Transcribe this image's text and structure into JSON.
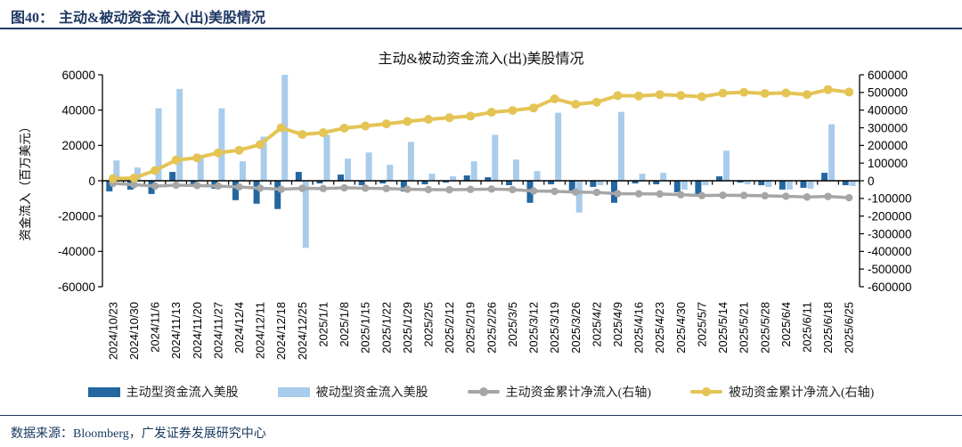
{
  "figure_header": {
    "label": "图40：",
    "title": "主动&被动资金流入(出)美股情况"
  },
  "source_note": "数据来源：Bloomberg，广发证券发展研究中心",
  "colors": {
    "active_bar": "#2367A0",
    "passive_bar": "#A9CCEB",
    "active_cum_line": "#A6A6A6",
    "passive_cum_line": "#E4C454",
    "header_text": "#1F3864",
    "axis": "#000000"
  },
  "chart_data": {
    "type": "bar",
    "subtype": "combo bar + line, dual axis",
    "title": "主动&被动资金流入(出)美股情况",
    "ylabel": "资金流入（百万美元）",
    "xlabel": "",
    "grid": false,
    "legend_position": "bottom",
    "left_axis": {
      "min": -60000,
      "max": 60000,
      "step": 20000,
      "ticks": [
        "60000",
        "40000",
        "20000",
        "0",
        "-20000",
        "-40000",
        "-60000"
      ]
    },
    "right_axis": {
      "min": -600000,
      "max": 600000,
      "step": 100000,
      "ticks": [
        "600000",
        "500000",
        "400000",
        "300000",
        "200000",
        "100000",
        "0",
        "-100000",
        "-200000",
        "-300000",
        "-400000",
        "-500000",
        "-600000"
      ]
    },
    "categories": [
      "2024/10/23",
      "2024/10/30",
      "2024/11/6",
      "2024/11/13",
      "2024/11/20",
      "2024/11/27",
      "2024/12/4",
      "2024/12/11",
      "2024/12/18",
      "2024/12/25",
      "2025/1/1",
      "2025/1/8",
      "2025/1/15",
      "2025/1/22",
      "2025/1/29",
      "2025/2/5",
      "2025/2/12",
      "2025/2/19",
      "2025/2/26",
      "2025/3/5",
      "2025/3/12",
      "2025/3/19",
      "2025/3/26",
      "2025/4/2",
      "2025/4/9",
      "2025/4/16",
      "2025/4/23",
      "2025/4/30",
      "2025/5/7",
      "2025/5/14",
      "2025/5/21",
      "2025/5/28",
      "2025/6/4",
      "2025/6/11",
      "2025/6/18",
      "2025/6/25"
    ],
    "series": [
      {
        "name": "主动型资金流入美股",
        "kind": "bar",
        "axis": "left",
        "color": "#2367A0",
        "values": [
          -6000,
          -5000,
          -7500,
          5000,
          -2200,
          -4500,
          -11000,
          -13000,
          -16000,
          5000,
          -1500,
          3500,
          -2500,
          -1500,
          -6000,
          -2000,
          -1000,
          3000,
          2000,
          -2500,
          -12500,
          -2000,
          -6000,
          -3500,
          -12500,
          -1500,
          -2000,
          -6500,
          -8500,
          2500,
          -1000,
          -2500,
          -5000,
          -4000,
          4500,
          -2500
        ]
      },
      {
        "name": "被动型资金流入美股",
        "kind": "bar",
        "axis": "left",
        "color": "#A9CCEB",
        "values": [
          11500,
          7500,
          41000,
          52000,
          13000,
          41000,
          11000,
          25000,
          60000,
          -38000,
          26000,
          12500,
          16000,
          9000,
          22000,
          4000,
          2500,
          11000,
          26000,
          12000,
          5500,
          38500,
          -18000,
          -2500,
          39000,
          4000,
          4500,
          -5000,
          -2500,
          17000,
          -2000,
          -3500,
          -5000,
          -4500,
          32000,
          -3000
        ]
      },
      {
        "name": "主动资金累计净流入(右轴)",
        "kind": "line",
        "axis": "right",
        "color": "#A6A6A6",
        "values": [
          -15000,
          -22000,
          -30000,
          -25000,
          -27000,
          -30000,
          -35000,
          -42000,
          -48000,
          -43000,
          -44000,
          -40000,
          -42000,
          -44000,
          -48000,
          -50000,
          -51000,
          -49000,
          -47000,
          -50000,
          -58000,
          -60000,
          -64000,
          -66000,
          -73000,
          -74000,
          -75000,
          -79000,
          -84000,
          -82000,
          -83000,
          -85000,
          -88000,
          -92000,
          -89000,
          -96000
        ]
      },
      {
        "name": "被动资金累计净流入(右轴)",
        "kind": "line",
        "axis": "right",
        "color": "#E4C454",
        "values": [
          12000,
          15000,
          58000,
          117000,
          130000,
          158000,
          173000,
          205000,
          300000,
          262000,
          272000,
          298000,
          310000,
          322000,
          336000,
          348000,
          357000,
          366000,
          388000,
          398000,
          412000,
          464000,
          433000,
          445000,
          482000,
          480000,
          488000,
          483000,
          476000,
          496000,
          501000,
          494000,
          497000,
          488000,
          516000,
          502000
        ]
      }
    ]
  }
}
